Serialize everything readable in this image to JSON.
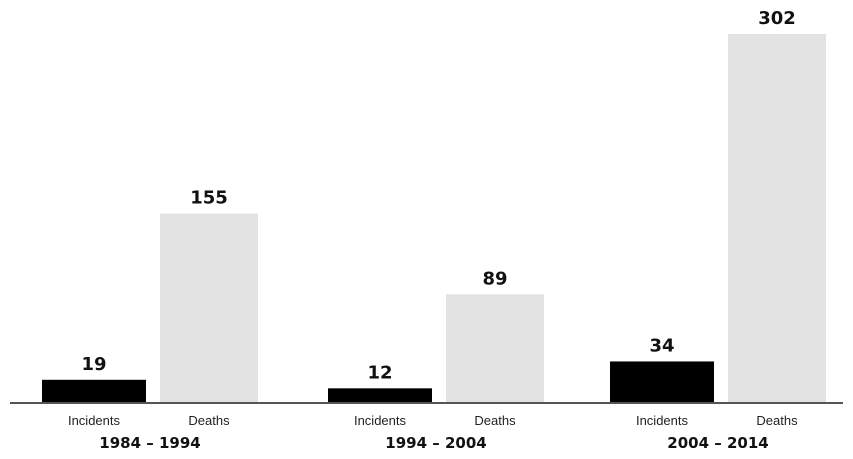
{
  "chart_data": {
    "type": "bar",
    "title": "",
    "groups": [
      "1984 – 1994",
      "1994 – 2004",
      "2004 – 2014"
    ],
    "series": [
      {
        "name": "Incidents",
        "values": [
          19,
          12,
          34
        ],
        "color": "#000000"
      },
      {
        "name": "Deaths",
        "values": [
          155,
          89,
          302
        ],
        "color": "#e3e3e3"
      }
    ],
    "xlabel": "",
    "ylabel": "",
    "ylim": [
      0,
      302
    ],
    "grid": false,
    "legend": "none",
    "baseline_color": "#555555"
  }
}
